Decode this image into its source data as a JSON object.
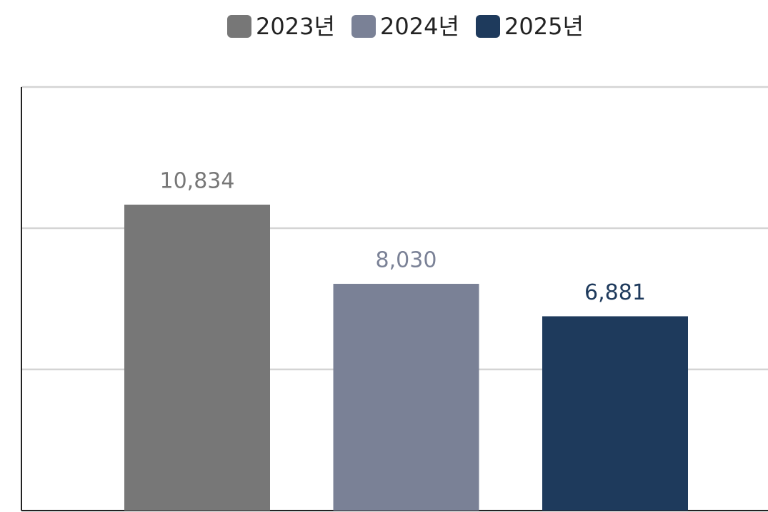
{
  "chart_data": {
    "type": "bar",
    "categories": [
      null
    ],
    "series": [
      {
        "name": "2023년",
        "color": "#777777",
        "values": [
          10834
        ],
        "value_labels": [
          "10,834"
        ]
      },
      {
        "name": "2024년",
        "color": "#7a8196",
        "values": [
          8030
        ],
        "value_labels": [
          "8,030"
        ]
      },
      {
        "name": "2025년",
        "color": "#1e3a5c",
        "values": [
          6881
        ],
        "value_labels": [
          "6,881"
        ]
      }
    ],
    "ylim": [
      0,
      15000
    ],
    "yticks": [
      0,
      5000,
      10000,
      15000
    ],
    "grid": true,
    "legend": "top"
  }
}
